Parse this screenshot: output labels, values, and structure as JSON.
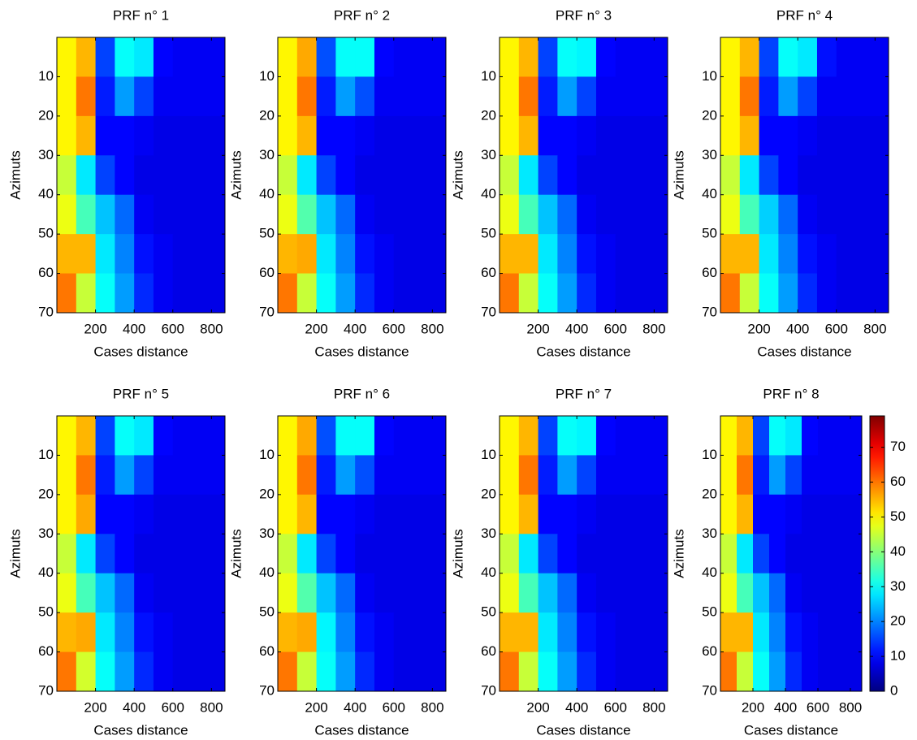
{
  "chart_data": [
    {
      "type": "heatmap",
      "title": "PRF n° 1",
      "xlabel": "Cases distance",
      "ylabel": "Azimuts",
      "colormap": "jet",
      "xlim": [
        0,
        870
      ],
      "ylim": [
        0,
        70
      ],
      "xticks": [
        200,
        400,
        600,
        800
      ],
      "yticks": [
        10,
        20,
        30,
        40,
        50,
        60,
        70
      ],
      "x_bins": [
        0,
        100,
        200,
        300,
        400,
        500,
        600,
        700,
        800,
        870
      ],
      "y_bins": [
        0,
        10,
        20,
        30,
        40,
        50,
        60,
        70
      ],
      "clim": [
        0,
        79
      ],
      "z": [
        [
          50,
          55,
          15,
          30,
          28,
          10,
          9,
          9,
          9
        ],
        [
          50,
          60,
          12,
          22,
          15,
          9,
          9,
          9,
          9
        ],
        [
          50,
          55,
          10,
          10,
          9,
          8,
          8,
          8,
          8
        ],
        [
          45,
          28,
          15,
          10,
          8,
          8,
          8,
          8,
          8
        ],
        [
          48,
          35,
          25,
          18,
          9,
          8,
          8,
          8,
          8
        ],
        [
          55,
          55,
          28,
          20,
          11,
          9,
          8,
          8,
          8
        ],
        [
          60,
          45,
          30,
          22,
          13,
          9,
          8,
          8,
          8
        ]
      ]
    },
    {
      "type": "heatmap",
      "title": "PRF n° 2",
      "xlabel": "Cases distance",
      "ylabel": "Azimuts",
      "colormap": "jet",
      "xlim": [
        0,
        870
      ],
      "ylim": [
        0,
        70
      ],
      "xticks": [
        200,
        400,
        600,
        800
      ],
      "yticks": [
        10,
        20,
        30,
        40,
        50,
        60,
        70
      ],
      "x_bins": [
        0,
        100,
        200,
        300,
        400,
        500,
        600,
        700,
        800,
        870
      ],
      "y_bins": [
        0,
        10,
        20,
        30,
        40,
        50,
        60,
        70
      ],
      "clim": [
        0,
        79
      ],
      "z": [
        [
          50,
          56,
          16,
          30,
          30,
          10,
          9,
          9,
          9
        ],
        [
          50,
          60,
          12,
          22,
          16,
          9,
          9,
          9,
          9
        ],
        [
          50,
          55,
          10,
          10,
          9,
          8,
          8,
          8,
          8
        ],
        [
          45,
          28,
          15,
          10,
          8,
          8,
          8,
          8,
          8
        ],
        [
          48,
          36,
          25,
          18,
          9,
          8,
          8,
          8,
          8
        ],
        [
          55,
          56,
          28,
          20,
          11,
          9,
          8,
          8,
          8
        ],
        [
          60,
          45,
          30,
          22,
          13,
          9,
          8,
          8,
          8
        ]
      ]
    },
    {
      "type": "heatmap",
      "title": "PRF n° 3",
      "xlabel": "Cases distance",
      "ylabel": "Azimuts",
      "colormap": "jet",
      "xlim": [
        0,
        870
      ],
      "ylim": [
        0,
        70
      ],
      "xticks": [
        200,
        400,
        600,
        800
      ],
      "yticks": [
        10,
        20,
        30,
        40,
        50,
        60,
        70
      ],
      "x_bins": [
        0,
        100,
        200,
        300,
        400,
        500,
        600,
        700,
        800,
        870
      ],
      "y_bins": [
        0,
        10,
        20,
        30,
        40,
        50,
        60,
        70
      ],
      "clim": [
        0,
        79
      ],
      "z": [
        [
          50,
          55,
          15,
          30,
          29,
          10,
          9,
          9,
          9
        ],
        [
          50,
          60,
          12,
          22,
          15,
          9,
          9,
          9,
          9
        ],
        [
          50,
          55,
          10,
          10,
          9,
          8,
          8,
          8,
          8
        ],
        [
          45,
          28,
          15,
          10,
          8,
          8,
          8,
          8,
          8
        ],
        [
          48,
          35,
          25,
          18,
          9,
          8,
          8,
          8,
          8
        ],
        [
          55,
          55,
          28,
          20,
          11,
          9,
          8,
          8,
          8
        ],
        [
          60,
          45,
          30,
          22,
          13,
          9,
          8,
          8,
          8
        ]
      ]
    },
    {
      "type": "heatmap",
      "title": "PRF n° 4",
      "xlabel": "Cases distance",
      "ylabel": "Azimuts",
      "colormap": "jet",
      "xlim": [
        0,
        870
      ],
      "ylim": [
        0,
        70
      ],
      "xticks": [
        200,
        400,
        600,
        800
      ],
      "yticks": [
        10,
        20,
        30,
        40,
        50,
        60,
        70
      ],
      "x_bins": [
        0,
        100,
        200,
        300,
        400,
        500,
        600,
        700,
        800,
        870
      ],
      "y_bins": [
        0,
        10,
        20,
        30,
        40,
        50,
        60,
        70
      ],
      "clim": [
        0,
        79
      ],
      "z": [
        [
          50,
          55,
          15,
          30,
          28,
          11,
          9,
          9,
          9
        ],
        [
          50,
          60,
          12,
          22,
          15,
          9,
          9,
          9,
          9
        ],
        [
          50,
          55,
          10,
          10,
          9,
          8,
          8,
          8,
          8
        ],
        [
          45,
          28,
          15,
          10,
          8,
          8,
          8,
          8,
          8
        ],
        [
          48,
          35,
          26,
          18,
          9,
          8,
          8,
          8,
          8
        ],
        [
          55,
          55,
          28,
          20,
          11,
          9,
          8,
          8,
          8
        ],
        [
          60,
          45,
          30,
          22,
          13,
          9,
          8,
          8,
          8
        ]
      ]
    },
    {
      "type": "heatmap",
      "title": "PRF n° 5",
      "xlabel": "Cases distance",
      "ylabel": "Azimuts",
      "colormap": "jet",
      "xlim": [
        0,
        870
      ],
      "ylim": [
        0,
        70
      ],
      "xticks": [
        200,
        400,
        600,
        800
      ],
      "yticks": [
        10,
        20,
        30,
        40,
        50,
        60,
        70
      ],
      "x_bins": [
        0,
        100,
        200,
        300,
        400,
        500,
        600,
        700,
        800,
        870
      ],
      "y_bins": [
        0,
        10,
        20,
        30,
        40,
        50,
        60,
        70
      ],
      "clim": [
        0,
        79
      ],
      "z": [
        [
          50,
          55,
          15,
          30,
          28,
          10,
          9,
          9,
          9
        ],
        [
          50,
          60,
          12,
          22,
          15,
          9,
          9,
          9,
          9
        ],
        [
          50,
          56,
          10,
          10,
          9,
          8,
          8,
          8,
          8
        ],
        [
          45,
          28,
          15,
          10,
          8,
          8,
          8,
          8,
          8
        ],
        [
          48,
          35,
          25,
          18,
          9,
          8,
          8,
          8,
          8
        ],
        [
          55,
          56,
          28,
          20,
          11,
          9,
          8,
          8,
          8
        ],
        [
          60,
          46,
          30,
          22,
          13,
          9,
          8,
          8,
          8
        ]
      ]
    },
    {
      "type": "heatmap",
      "title": "PRF n° 6",
      "xlabel": "Cases distance",
      "ylabel": "Azimuts",
      "colormap": "jet",
      "xlim": [
        0,
        870
      ],
      "ylim": [
        0,
        70
      ],
      "xticks": [
        200,
        400,
        600,
        800
      ],
      "yticks": [
        10,
        20,
        30,
        40,
        50,
        60,
        70
      ],
      "x_bins": [
        0,
        100,
        200,
        300,
        400,
        500,
        600,
        700,
        800,
        870
      ],
      "y_bins": [
        0,
        10,
        20,
        30,
        40,
        50,
        60,
        70
      ],
      "clim": [
        0,
        79
      ],
      "z": [
        [
          50,
          56,
          16,
          30,
          30,
          10,
          9,
          9,
          9
        ],
        [
          50,
          60,
          12,
          22,
          16,
          9,
          9,
          9,
          9
        ],
        [
          50,
          55,
          10,
          10,
          9,
          8,
          8,
          8,
          8
        ],
        [
          45,
          28,
          15,
          10,
          8,
          8,
          8,
          8,
          8
        ],
        [
          48,
          36,
          25,
          18,
          9,
          8,
          8,
          8,
          8
        ],
        [
          55,
          56,
          29,
          20,
          11,
          9,
          8,
          8,
          8
        ],
        [
          60,
          45,
          30,
          22,
          13,
          9,
          8,
          8,
          8
        ]
      ]
    },
    {
      "type": "heatmap",
      "title": "PRF n° 7",
      "xlabel": "Cases distance",
      "ylabel": "Azimuts",
      "colormap": "jet",
      "xlim": [
        0,
        870
      ],
      "ylim": [
        0,
        70
      ],
      "xticks": [
        200,
        400,
        600,
        800
      ],
      "yticks": [
        10,
        20,
        30,
        40,
        50,
        60,
        70
      ],
      "x_bins": [
        0,
        100,
        200,
        300,
        400,
        500,
        600,
        700,
        800,
        870
      ],
      "y_bins": [
        0,
        10,
        20,
        30,
        40,
        50,
        60,
        70
      ],
      "clim": [
        0,
        79
      ],
      "z": [
        [
          50,
          55,
          15,
          30,
          29,
          10,
          9,
          9,
          9
        ],
        [
          50,
          60,
          12,
          22,
          15,
          9,
          9,
          9,
          9
        ],
        [
          50,
          55,
          10,
          10,
          9,
          8,
          8,
          8,
          8
        ],
        [
          45,
          28,
          15,
          10,
          8,
          8,
          8,
          8,
          8
        ],
        [
          48,
          35,
          25,
          18,
          9,
          8,
          8,
          8,
          8
        ],
        [
          55,
          55,
          28,
          20,
          11,
          9,
          8,
          8,
          8
        ],
        [
          60,
          45,
          30,
          22,
          13,
          9,
          8,
          8,
          8
        ]
      ]
    },
    {
      "type": "heatmap",
      "title": "PRF n° 8",
      "xlabel": "Cases distance",
      "ylabel": "Azimuts",
      "colormap": "jet",
      "xlim": [
        0,
        870
      ],
      "ylim": [
        0,
        70
      ],
      "xticks": [
        200,
        400,
        600,
        800
      ],
      "yticks": [
        10,
        20,
        30,
        40,
        50,
        60,
        70
      ],
      "x_bins": [
        0,
        100,
        200,
        300,
        400,
        500,
        600,
        700,
        800,
        870
      ],
      "y_bins": [
        0,
        10,
        20,
        30,
        40,
        50,
        60,
        70
      ],
      "clim": [
        0,
        79
      ],
      "z": [
        [
          50,
          55,
          15,
          30,
          28,
          10,
          9,
          9,
          9
        ],
        [
          50,
          60,
          12,
          22,
          15,
          9,
          9,
          9,
          9
        ],
        [
          50,
          55,
          10,
          10,
          9,
          8,
          8,
          8,
          8
        ],
        [
          45,
          28,
          15,
          10,
          8,
          8,
          8,
          8,
          8
        ],
        [
          48,
          35,
          25,
          18,
          9,
          8,
          8,
          8,
          8
        ],
        [
          55,
          55,
          28,
          20,
          11,
          9,
          8,
          8,
          8
        ],
        [
          60,
          45,
          30,
          22,
          13,
          9,
          8,
          8,
          8
        ]
      ],
      "colorbar": {
        "ticks": [
          0,
          10,
          20,
          30,
          40,
          50,
          60,
          70
        ]
      }
    }
  ]
}
